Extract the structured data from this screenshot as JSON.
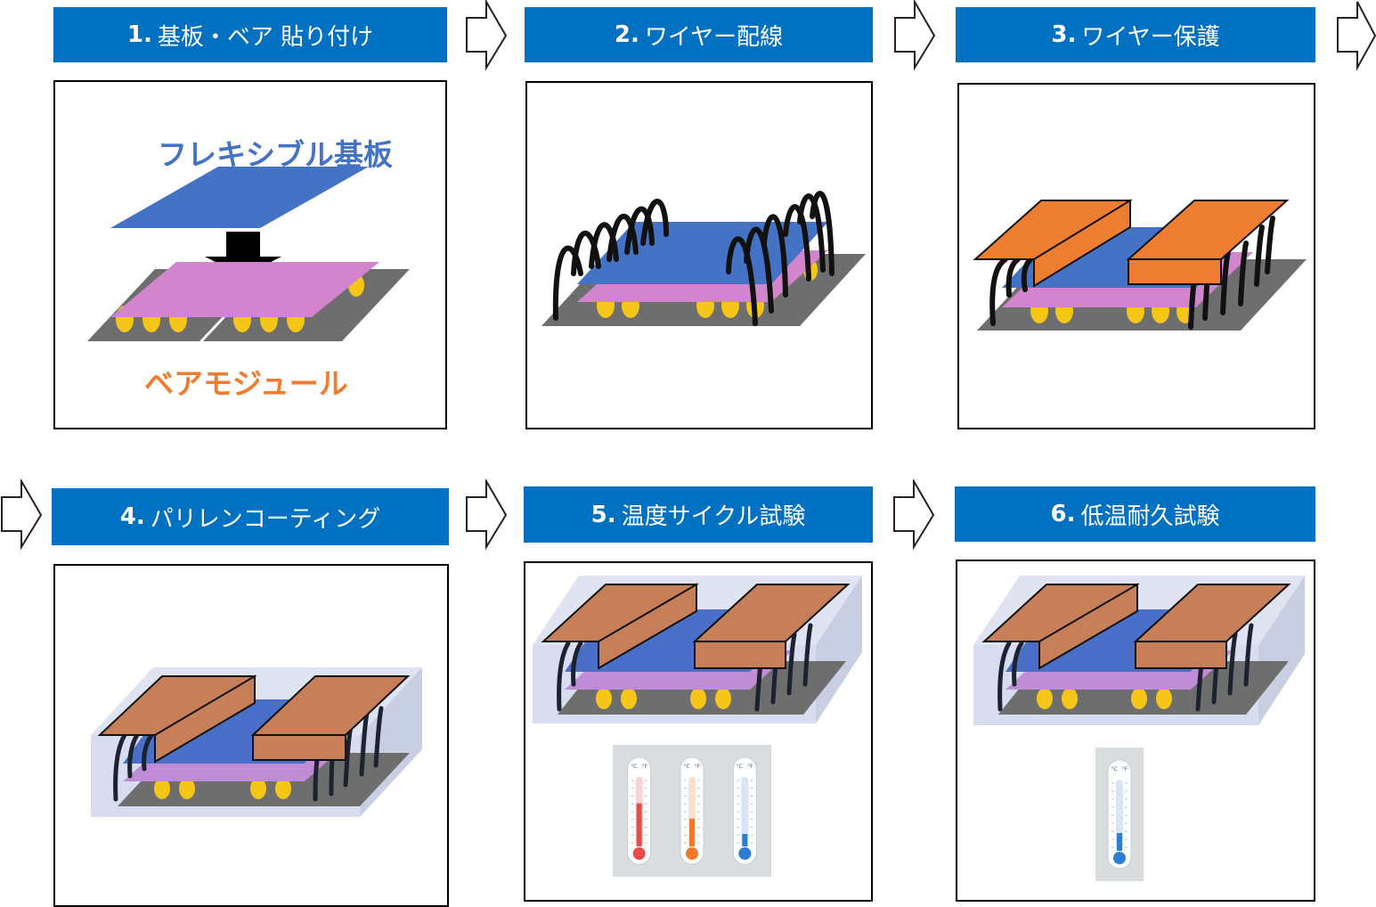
{
  "steps": [
    {
      "num": "1.",
      "title": "基板・ベア 貼り付け"
    },
    {
      "num": "2.",
      "title": "ワイヤー配線"
    },
    {
      "num": "3.",
      "title": "ワイヤー保護"
    },
    {
      "num": "4.",
      "title": "パリレンコーティング"
    },
    {
      "num": "5.",
      "title": "温度サイクル試験"
    },
    {
      "num": "6.",
      "title": "低温耐久試験"
    }
  ],
  "labels": {
    "flex_substrate": "フレキシブル基板",
    "bare_module": "ベアモジュール"
  },
  "thermometer_scale": {
    "celsius": "°C",
    "fahrenheit": "°F"
  },
  "colors": {
    "header": "#0070c0",
    "flex_substrate": "#4472c4",
    "bare_module": "#d284cc",
    "bumps": "#f5c518",
    "base_plate": "#6e6e6e",
    "wires": "#111111",
    "wire_protection": "#ed7d31",
    "wire_protection_coated": "#c77f5a",
    "parylene_coating": "#dfe3f2",
    "label_flex": "#4472c4",
    "label_bare": "#ed7d31",
    "thermo_hot": "#e84b4b",
    "thermo_warm": "#f07a2a",
    "thermo_cold": "#2a7fd4"
  },
  "thermometers": {
    "step5": [
      {
        "name": "hot",
        "level": 0.62
      },
      {
        "name": "warm",
        "level": 0.4
      },
      {
        "name": "cold",
        "level": 0.18
      }
    ],
    "step6": [
      {
        "name": "cold",
        "level": 0.25
      }
    ]
  }
}
